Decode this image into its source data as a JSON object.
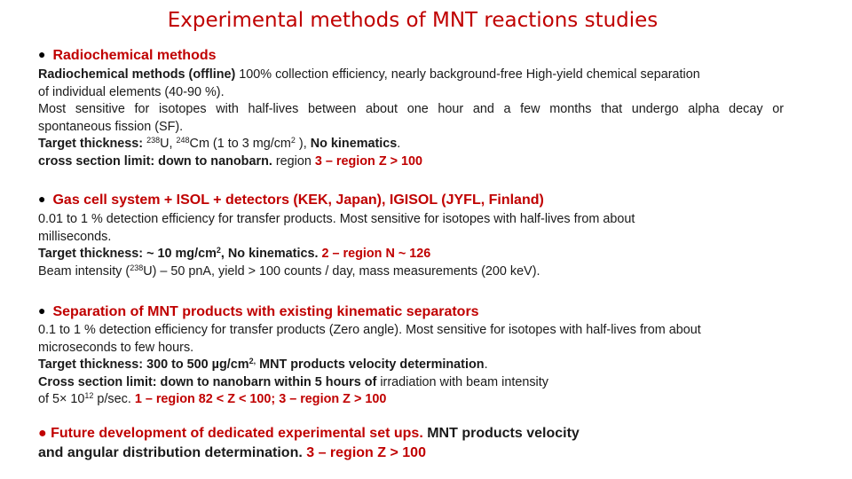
{
  "title": "Experimental methods of MNT reactions studies",
  "bullet": "●",
  "s1": {
    "heading": "Radiochemical methods",
    "l1a": "Radiochemical methods (offline)",
    "l1b": " 100% collection efficiency, nearly  background-free High-yield chemical separation",
    "l2": "of individual elements (40-90 %).",
    "l3": "Most sensitive for isotopes with half-lives between about one hour and a few months that  undergo alpha decay or",
    "l4": "spontaneous fission (SF).",
    "l5a": "Target thickness:",
    "l5_iso1_mass": "238",
    "l5_iso1_el": "U, ",
    "l5_iso2_mass": "248",
    "l5_iso2_el": "Cm (1 to 3 mg/cm",
    "l5_exp": "2",
    "l5c": " ), ",
    "l5d": "No kinematics",
    "l5e": ".",
    "l6a": "cross section limit: down to nanobarn.",
    "l6b": " region ",
    "l6c": " 3 – region Z > 100"
  },
  "s2": {
    "heading": "Gas cell system + ISOL + detectors (KEK, Japan), IGISOL (JYFL, Finland)",
    "l1": "0.01 to 1 % detection efficiency for transfer products. Most sensitive for isotopes with half-lives from  about",
    "l2": "milliseconds.",
    "l3a": "Target thickness: ~ 10 mg/cm",
    "l3_exp": "2",
    "l3b": ", No kinematics.",
    "l3c": " 2 – region N ~ 126",
    "l4a": "Beam intensity (",
    "l4_mass": "238",
    "l4b": "U) – 50 pnA, yield > 100 counts / day, mass measurements (200 keV)."
  },
  "s3": {
    "heading": "Separation of MNT products with existing kinematic separators",
    "l1": "0.1 to 1 % detection efficiency for transfer products (Zero angle). Most sensitive for isotopes with  half-lives from about",
    "l2": "microseconds to few hours.",
    "l3a": "Target thickness: 300 to 500 µg/cm",
    "l3_exp": "2,",
    "l3b": " MNT products velocity determination",
    "l3c": ".",
    "l4a": "Cross section limit: down to nanobarn within 5 hours of",
    "l4b": " irradiation with beam intensity",
    "l5a": "of 5× 10",
    "l5_exp": "12",
    "l5b": " p/sec. ",
    "l5c": "1 – region  82 < Z < 100; 3 – region Z > 100"
  },
  "s4": {
    "l1a": "● Future development of dedicated experimental set ups.",
    "l1b": " MNT products velocity",
    "l2a": "and angular distribution determination.",
    "l2b": " 3 – region Z > 100"
  }
}
